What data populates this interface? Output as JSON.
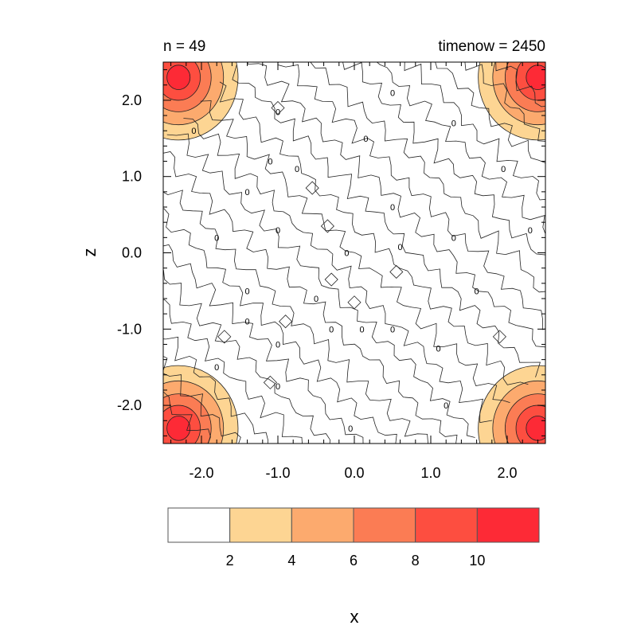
{
  "chart_data": {
    "type": "contour",
    "title_left": "n = 49",
    "title_right": "timenow = 2450",
    "xlabel": "x",
    "ylabel": "z",
    "xlim": [
      -2.5,
      2.5
    ],
    "ylim": [
      -2.5,
      2.5
    ],
    "xticks": [
      {
        "value": -2.0,
        "label": "-2.0"
      },
      {
        "value": -1.0,
        "label": "-1.0"
      },
      {
        "value": 0.0,
        "label": "0.0"
      },
      {
        "value": 1.0,
        "label": "1.0"
      },
      {
        "value": 2.0,
        "label": "2.0"
      }
    ],
    "yticks": [
      {
        "value": 2.0,
        "label": "2.0"
      },
      {
        "value": 1.0,
        "label": "1.0"
      },
      {
        "value": 0.0,
        "label": "0.0"
      },
      {
        "value": -1.0,
        "label": "-1.0"
      },
      {
        "value": -2.0,
        "label": "-2.0"
      }
    ],
    "contour_interval": 2,
    "colorbar": {
      "levels": [
        {
          "label": "2",
          "value": 2
        },
        {
          "label": "4",
          "value": 4
        },
        {
          "label": "6",
          "value": 6
        },
        {
          "label": "8",
          "value": 8
        },
        {
          "label": "10",
          "value": 10
        }
      ],
      "colors": [
        "#ffffff",
        "#fdd593",
        "#fcaa6e",
        "#fb7c54",
        "#fd4e40",
        "#fd2a36"
      ]
    },
    "hotspots": [
      {
        "x": -2.3,
        "z": 2.3,
        "peak": 11
      },
      {
        "x": 2.4,
        "z": 2.3,
        "peak": 11
      },
      {
        "x": -2.3,
        "z": -2.3,
        "peak": 11
      },
      {
        "x": 2.4,
        "z": -2.3,
        "peak": 11
      }
    ],
    "zero_labels": [
      {
        "x": -1.0,
        "z": 1.85,
        "label": "0"
      },
      {
        "x": 0.5,
        "z": 2.1,
        "label": "0"
      },
      {
        "x": -2.1,
        "z": 1.6,
        "label": "0"
      },
      {
        "x": 0.15,
        "z": 1.5,
        "label": "0"
      },
      {
        "x": 1.3,
        "z": 1.7,
        "label": "0"
      },
      {
        "x": -1.1,
        "z": 1.2,
        "label": "0"
      },
      {
        "x": -0.75,
        "z": 1.1,
        "label": "0"
      },
      {
        "x": 1.95,
        "z": 1.1,
        "label": "0"
      },
      {
        "x": -1.4,
        "z": 0.8,
        "label": "0"
      },
      {
        "x": 0.5,
        "z": 0.6,
        "label": "0"
      },
      {
        "x": -1.0,
        "z": 0.3,
        "label": "0"
      },
      {
        "x": -1.8,
        "z": 0.2,
        "label": "0"
      },
      {
        "x": 1.3,
        "z": 0.2,
        "label": "0"
      },
      {
        "x": 2.3,
        "z": 0.3,
        "label": "0"
      },
      {
        "x": -0.1,
        "z": 0.0,
        "label": "0"
      },
      {
        "x": 0.6,
        "z": 0.08,
        "label": "0"
      },
      {
        "x": -1.4,
        "z": -0.5,
        "label": "0"
      },
      {
        "x": -0.5,
        "z": -0.6,
        "label": "0"
      },
      {
        "x": 1.6,
        "z": -0.5,
        "label": "0"
      },
      {
        "x": -1.4,
        "z": -0.9,
        "label": "0"
      },
      {
        "x": -0.3,
        "z": -1.0,
        "label": "0"
      },
      {
        "x": 0.1,
        "z": -1.0,
        "label": "0"
      },
      {
        "x": 0.5,
        "z": -1.0,
        "label": "0"
      },
      {
        "x": -1.0,
        "z": -1.2,
        "label": "0"
      },
      {
        "x": 1.1,
        "z": -1.25,
        "label": "0"
      },
      {
        "x": -1.8,
        "z": -1.5,
        "label": "0"
      },
      {
        "x": -1.0,
        "z": -1.75,
        "label": "0"
      },
      {
        "x": 1.2,
        "z": -2.0,
        "label": "0"
      },
      {
        "x": -0.05,
        "z": -2.3,
        "label": "0"
      }
    ]
  }
}
